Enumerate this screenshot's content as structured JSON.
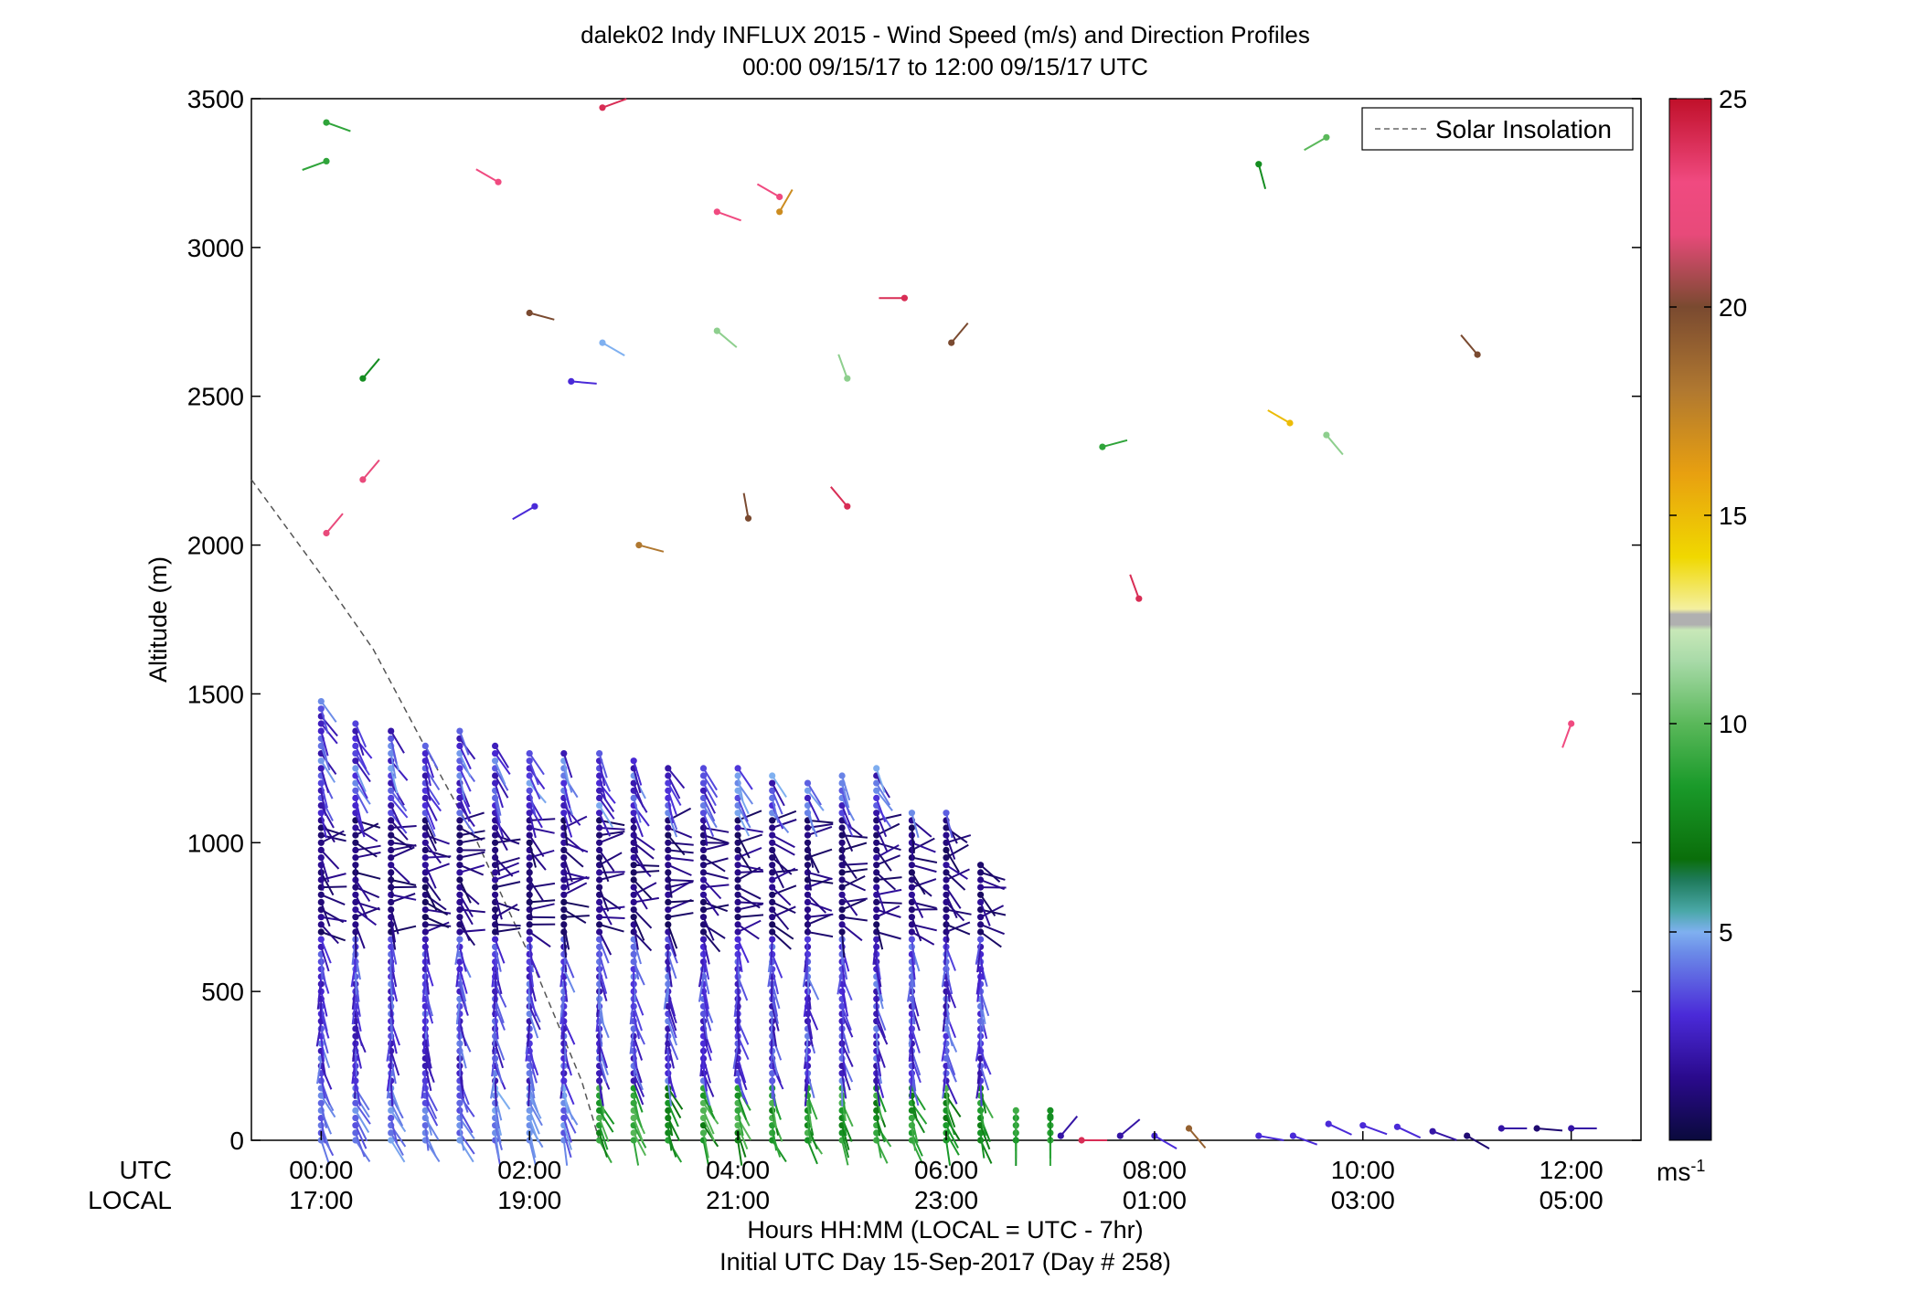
{
  "chart_data": {
    "type": "wind_barb_profile",
    "title_line1": "dalek02 Indy INFLUX 2015 - Wind Speed (m/s) and Direction Profiles",
    "title_line2": "00:00 09/15/17 to 12:00 09/15/17  UTC",
    "ylabel": "Altitude (m)",
    "xlabel": "Hours HH:MM  (LOCAL = UTC - 7hr)",
    "subtitle": "Initial UTC Day 15-Sep-2017 (Day # 258)",
    "row_label_utc": "UTC",
    "row_label_local": "LOCAL",
    "xlim_hours": [
      -0.67,
      12.67
    ],
    "ylim": [
      0,
      3500
    ],
    "y_ticks": [
      0,
      500,
      1000,
      1500,
      2000,
      2500,
      3000,
      3500
    ],
    "x_ticks_utc": [
      "00:00",
      "02:00",
      "04:00",
      "06:00",
      "08:00",
      "10:00",
      "12:00"
    ],
    "x_ticks_local": [
      "17:00",
      "19:00",
      "21:00",
      "23:00",
      "01:00",
      "03:00",
      "05:00"
    ],
    "x_tick_hours": [
      0,
      2,
      4,
      6,
      8,
      10,
      12
    ],
    "legend": {
      "label": "Solar Insolation",
      "position": "top-right"
    },
    "colorbar": {
      "unit": "ms",
      "unit_exp": "-1",
      "ticks": [
        5,
        10,
        15,
        20,
        25
      ],
      "range": [
        0,
        25
      ]
    },
    "solar_insolation": {
      "x": [
        -0.67,
        0.0,
        0.5,
        1.0,
        1.5,
        2.0,
        2.5,
        2.67
      ],
      "y": [
        2220,
        1900,
        1650,
        1320,
        1000,
        620,
        200,
        0
      ]
    },
    "profile_hours": [
      0,
      0.33,
      0.67,
      1.0,
      1.33,
      1.67,
      2.0,
      2.33,
      2.67,
      3.0,
      3.33,
      3.67,
      4.0,
      4.33,
      4.67,
      5.0,
      5.33,
      5.67,
      6.0,
      6.33,
      6.67,
      7.0
    ],
    "profile_tops": [
      1480,
      1420,
      1380,
      1340,
      1380,
      1340,
      1310,
      1310,
      1300,
      1280,
      1260,
      1260,
      1250,
      1240,
      1220,
      1240,
      1250,
      1110,
      1120,
      940,
      120,
      100
    ],
    "sparse_points": [
      {
        "t": 0.05,
        "alt": 3420,
        "spd": 9,
        "dir": 110
      },
      {
        "t": 0.05,
        "alt": 3290,
        "spd": 9,
        "dir": 250
      },
      {
        "t": 1.7,
        "alt": 3220,
        "spd": 23,
        "dir": 300
      },
      {
        "t": 2.7,
        "alt": 3470,
        "spd": 24,
        "dir": 70
      },
      {
        "t": 3.8,
        "alt": 3120,
        "spd": 23,
        "dir": 110
      },
      {
        "t": 4.4,
        "alt": 3170,
        "spd": 23,
        "dir": 300
      },
      {
        "t": 4.4,
        "alt": 3120,
        "spd": 17,
        "dir": 30
      },
      {
        "t": 2.0,
        "alt": 2780,
        "spd": 20,
        "dir": 105
      },
      {
        "t": 2.7,
        "alt": 2680,
        "spd": 5,
        "dir": 120
      },
      {
        "t": 3.8,
        "alt": 2720,
        "spd": 11,
        "dir": 130
      },
      {
        "t": 5.6,
        "alt": 2830,
        "spd": 24,
        "dir": 270
      },
      {
        "t": 6.05,
        "alt": 2680,
        "spd": 20,
        "dir": 40
      },
      {
        "t": 11.1,
        "alt": 2640,
        "spd": 20,
        "dir": 320
      },
      {
        "t": 0.4,
        "alt": 2560,
        "spd": 8,
        "dir": 40
      },
      {
        "t": 2.4,
        "alt": 2550,
        "spd": 3,
        "dir": 95
      },
      {
        "t": 5.05,
        "alt": 2560,
        "spd": 11,
        "dir": 340
      },
      {
        "t": 7.5,
        "alt": 2330,
        "spd": 9,
        "dir": 75
      },
      {
        "t": 9.3,
        "alt": 2410,
        "spd": 15,
        "dir": 300
      },
      {
        "t": 9.65,
        "alt": 2370,
        "spd": 11,
        "dir": 140
      },
      {
        "t": 0.4,
        "alt": 2220,
        "spd": 22,
        "dir": 40
      },
      {
        "t": 0.05,
        "alt": 2040,
        "spd": 22,
        "dir": 40
      },
      {
        "t": 2.05,
        "alt": 2130,
        "spd": 3,
        "dir": 240
      },
      {
        "t": 3.05,
        "alt": 2000,
        "spd": 18,
        "dir": 105
      },
      {
        "t": 4.1,
        "alt": 2090,
        "spd": 20,
        "dir": 350
      },
      {
        "t": 5.05,
        "alt": 2130,
        "spd": 24,
        "dir": 320
      },
      {
        "t": 7.85,
        "alt": 1820,
        "spd": 24,
        "dir": 340
      },
      {
        "t": 9.0,
        "alt": 3280,
        "spd": 8,
        "dir": 165
      },
      {
        "t": 9.65,
        "alt": 3370,
        "spd": 10,
        "dir": 240
      },
      {
        "t": 12.0,
        "alt": 1400,
        "spd": 23,
        "dir": 200
      }
    ],
    "low_points": [
      {
        "t": 7.0,
        "alt": 80,
        "spd": 8,
        "dir": 180
      },
      {
        "t": 7.1,
        "alt": 15,
        "spd": 2,
        "dir": 40
      },
      {
        "t": 7.3,
        "alt": 0,
        "spd": 24,
        "dir": 90
      },
      {
        "t": 7.67,
        "alt": 15,
        "spd": 2,
        "dir": 50
      },
      {
        "t": 8.0,
        "alt": 15,
        "spd": 3,
        "dir": 120
      },
      {
        "t": 8.33,
        "alt": 40,
        "spd": 19,
        "dir": 140
      },
      {
        "t": 9.0,
        "alt": 15,
        "spd": 3,
        "dir": 100
      },
      {
        "t": 9.33,
        "alt": 15,
        "spd": 3,
        "dir": 110
      },
      {
        "t": 9.67,
        "alt": 55,
        "spd": 3,
        "dir": 115
      },
      {
        "t": 10.0,
        "alt": 50,
        "spd": 3,
        "dir": 110
      },
      {
        "t": 10.33,
        "alt": 45,
        "spd": 3,
        "dir": 115
      },
      {
        "t": 10.67,
        "alt": 30,
        "spd": 2,
        "dir": 110
      },
      {
        "t": 11.0,
        "alt": 15,
        "spd": 1,
        "dir": 120
      },
      {
        "t": 11.33,
        "alt": 40,
        "spd": 2,
        "dir": 90
      },
      {
        "t": 11.67,
        "alt": 40,
        "spd": 1,
        "dir": 95
      },
      {
        "t": 12.0,
        "alt": 40,
        "spd": 2,
        "dir": 90
      }
    ]
  }
}
